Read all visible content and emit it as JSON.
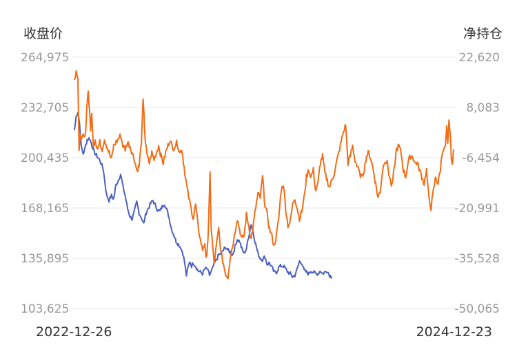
{
  "chart_data": {
    "type": "line",
    "left_axis_title": "收盘价",
    "right_axis_title": "净持仓",
    "x_start_label": "2022-12-26",
    "x_end_label": "2024-12-23",
    "x_range": [
      "2022-12-26",
      "2024-12-23"
    ],
    "left_axis": {
      "ticks": [
        "264,975",
        "232,705",
        "200,435",
        "168,165",
        "135,895",
        "103,625"
      ],
      "ylim": [
        103625,
        264975
      ]
    },
    "right_axis": {
      "ticks": [
        "22,620",
        "8,083",
        "-6,454",
        "-20,991",
        "-35,528",
        "-50,065"
      ],
      "ylim": [
        -50065,
        22620
      ]
    },
    "grid": true,
    "colors": {
      "close": "#4a5fc1",
      "net": "#f46b13",
      "grid": "#e8e8e8",
      "tick": "#999999",
      "title": "#333333"
    },
    "series": [
      {
        "axis": "left",
        "color": "#4a5fc1",
        "anchors": [
          [
            0,
            218000
          ],
          [
            3,
            227000
          ],
          [
            6,
            230000
          ],
          [
            9,
            222000
          ],
          [
            12,
            207000
          ],
          [
            15,
            203000
          ],
          [
            18,
            206000
          ],
          [
            22,
            212000
          ],
          [
            26,
            213000
          ],
          [
            30,
            209000
          ],
          [
            34,
            204000
          ],
          [
            38,
            202000
          ],
          [
            42,
            200000
          ],
          [
            46,
            197000
          ],
          [
            50,
            193000
          ],
          [
            53,
            184000
          ],
          [
            56,
            176000
          ],
          [
            60,
            173000
          ],
          [
            64,
            176000
          ],
          [
            68,
            174000
          ],
          [
            72,
            183000
          ],
          [
            76,
            186000
          ],
          [
            80,
            190000
          ],
          [
            84,
            182000
          ],
          [
            88,
            176000
          ],
          [
            92,
            168000
          ],
          [
            96,
            163000
          ],
          [
            100,
            161000
          ],
          [
            104,
            166000
          ],
          [
            108,
            172000
          ],
          [
            112,
            165000
          ],
          [
            116,
            162000
          ],
          [
            120,
            158000
          ],
          [
            124,
            165000
          ],
          [
            128,
            168000
          ],
          [
            132,
            171000
          ],
          [
            136,
            173000
          ],
          [
            140,
            170000
          ],
          [
            144,
            167000
          ],
          [
            148,
            166000
          ],
          [
            152,
            169000
          ],
          [
            156,
            171000
          ],
          [
            160,
            167000
          ],
          [
            164,
            162000
          ],
          [
            168,
            155000
          ],
          [
            172,
            151000
          ],
          [
            176,
            147000
          ],
          [
            180,
            145000
          ],
          [
            184,
            143000
          ],
          [
            188,
            139000
          ],
          [
            191,
            133000
          ],
          [
            194,
            125000
          ],
          [
            197,
            130000
          ],
          [
            200,
            134000
          ],
          [
            203,
            131000
          ],
          [
            206,
            133000
          ],
          [
            210,
            131000
          ],
          [
            214,
            128000
          ],
          [
            218,
            127000
          ],
          [
            222,
            126000
          ],
          [
            226,
            129000
          ],
          [
            230,
            129000
          ],
          [
            234,
            125000
          ],
          [
            238,
            128000
          ],
          [
            242,
            132000
          ],
          [
            246,
            135000
          ],
          [
            250,
            138000
          ],
          [
            254,
            139000
          ],
          [
            258,
            141000
          ],
          [
            262,
            143000
          ],
          [
            266,
            141000
          ],
          [
            270,
            140000
          ],
          [
            274,
            138000
          ],
          [
            278,
            143000
          ],
          [
            282,
            148000
          ],
          [
            286,
            147000
          ],
          [
            290,
            142000
          ],
          [
            294,
            139000
          ],
          [
            298,
            142000
          ],
          [
            302,
            150000
          ],
          [
            306,
            158000
          ],
          [
            310,
            152000
          ],
          [
            314,
            145000
          ],
          [
            318,
            139000
          ],
          [
            322,
            136000
          ],
          [
            326,
            135000
          ],
          [
            330,
            137000
          ],
          [
            334,
            132000
          ],
          [
            338,
            133000
          ],
          [
            342,
            130000
          ],
          [
            346,
            127000
          ],
          [
            350,
            127000
          ],
          [
            354,
            130000
          ],
          [
            358,
            131000
          ],
          [
            362,
            131000
          ],
          [
            366,
            129000
          ],
          [
            370,
            127000
          ],
          [
            374,
            126000
          ],
          [
            378,
            124000
          ],
          [
            382,
            125000
          ],
          [
            386,
            129000
          ],
          [
            390,
            134000
          ],
          [
            394,
            133000
          ],
          [
            398,
            128000
          ],
          [
            402,
            127000
          ],
          [
            406,
            126000
          ],
          [
            410,
            128000
          ],
          [
            414,
            127000
          ],
          [
            418,
            126000
          ],
          [
            422,
            126000
          ],
          [
            426,
            128000
          ],
          [
            430,
            126000
          ],
          [
            434,
            127000
          ],
          [
            438,
            128000
          ],
          [
            442,
            125000
          ],
          [
            446,
            124000
          ]
        ]
      },
      {
        "axis": "right",
        "color": "#f46b13",
        "anchors": [
          [
            0,
            16000
          ],
          [
            3,
            19000
          ],
          [
            6,
            16000
          ],
          [
            8,
            -5000
          ],
          [
            10,
            1000
          ],
          [
            12,
            -2000
          ],
          [
            15,
            0
          ],
          [
            18,
            -1000
          ],
          [
            20,
            3000
          ],
          [
            22,
            10000
          ],
          [
            24,
            13000
          ],
          [
            26,
            7000
          ],
          [
            28,
            2000
          ],
          [
            30,
            6000
          ],
          [
            33,
            -3000
          ],
          [
            36,
            -1000
          ],
          [
            40,
            -4000
          ],
          [
            44,
            -2000
          ],
          [
            48,
            -4000
          ],
          [
            52,
            -1000
          ],
          [
            56,
            -3000
          ],
          [
            60,
            -5000
          ],
          [
            64,
            -7000
          ],
          [
            68,
            -3000
          ],
          [
            72,
            -2000
          ],
          [
            76,
            -1000
          ],
          [
            80,
            0
          ],
          [
            84,
            -3000
          ],
          [
            88,
            -4000
          ],
          [
            92,
            -2000
          ],
          [
            96,
            -3000
          ],
          [
            100,
            -5000
          ],
          [
            104,
            -7000
          ],
          [
            108,
            -10000
          ],
          [
            112,
            -9000
          ],
          [
            116,
            -2000
          ],
          [
            119,
            10000
          ],
          [
            121,
            4000
          ],
          [
            123,
            -2000
          ],
          [
            126,
            -6000
          ],
          [
            130,
            -8000
          ],
          [
            134,
            -5000
          ],
          [
            138,
            -7000
          ],
          [
            142,
            -5000
          ],
          [
            146,
            -3000
          ],
          [
            150,
            -6000
          ],
          [
            154,
            -8000
          ],
          [
            158,
            -5000
          ],
          [
            162,
            -3000
          ],
          [
            166,
            -1000
          ],
          [
            170,
            -4000
          ],
          [
            174,
            -3000
          ],
          [
            178,
            -2000
          ],
          [
            182,
            -5000
          ],
          [
            186,
            -4000
          ],
          [
            190,
            -9000
          ],
          [
            194,
            -14000
          ],
          [
            198,
            -18000
          ],
          [
            202,
            -21000
          ],
          [
            206,
            -24000
          ],
          [
            210,
            -20000
          ],
          [
            214,
            -26000
          ],
          [
            218,
            -30000
          ],
          [
            222,
            -33000
          ],
          [
            226,
            -31000
          ],
          [
            228,
            -36000
          ],
          [
            230,
            -33000
          ],
          [
            232,
            -28000
          ],
          [
            235,
            -11000
          ],
          [
            237,
            -27000
          ],
          [
            239,
            -31000
          ],
          [
            242,
            -37000
          ],
          [
            246,
            -32000
          ],
          [
            250,
            -27000
          ],
          [
            254,
            -34000
          ],
          [
            258,
            -37000
          ],
          [
            262,
            -40000
          ],
          [
            266,
            -41000
          ],
          [
            270,
            -35000
          ],
          [
            274,
            -32000
          ],
          [
            278,
            -28000
          ],
          [
            282,
            -24000
          ],
          [
            286,
            -27000
          ],
          [
            290,
            -30000
          ],
          [
            294,
            -29000
          ],
          [
            298,
            -23000
          ],
          [
            302,
            -26000
          ],
          [
            306,
            -30000
          ],
          [
            310,
            -26000
          ],
          [
            314,
            -21000
          ],
          [
            318,
            -17000
          ],
          [
            322,
            -18000
          ],
          [
            326,
            -12000
          ],
          [
            330,
            -20000
          ],
          [
            334,
            -23000
          ],
          [
            338,
            -27000
          ],
          [
            342,
            -29000
          ],
          [
            346,
            -32000
          ],
          [
            350,
            -29000
          ],
          [
            354,
            -24000
          ],
          [
            358,
            -16000
          ],
          [
            362,
            -14000
          ],
          [
            366,
            -21000
          ],
          [
            370,
            -26000
          ],
          [
            374,
            -25000
          ],
          [
            378,
            -20000
          ],
          [
            382,
            -18000
          ],
          [
            386,
            -21000
          ],
          [
            390,
            -24000
          ],
          [
            394,
            -22000
          ],
          [
            398,
            -18000
          ],
          [
            402,
            -12000
          ],
          [
            406,
            -10000
          ],
          [
            410,
            -12000
          ],
          [
            414,
            -10000
          ],
          [
            418,
            -16000
          ],
          [
            422,
            -14000
          ],
          [
            426,
            -8000
          ],
          [
            430,
            -6000
          ],
          [
            434,
            -11000
          ],
          [
            438,
            -13000
          ],
          [
            442,
            -15000
          ],
          [
            446,
            -13000
          ],
          [
            450,
            -11000
          ],
          [
            454,
            -8000
          ],
          [
            458,
            -5000
          ],
          [
            462,
            -2000
          ],
          [
            466,
            1000
          ],
          [
            470,
            3000
          ],
          [
            474,
            -8000
          ],
          [
            478,
            -6000
          ],
          [
            482,
            -3000
          ],
          [
            486,
            -7000
          ],
          [
            490,
            -9000
          ],
          [
            494,
            -11000
          ],
          [
            498,
            -12000
          ],
          [
            502,
            -10000
          ],
          [
            506,
            -6000
          ],
          [
            510,
            -5000
          ],
          [
            514,
            -7000
          ],
          [
            518,
            -10000
          ],
          [
            522,
            -14000
          ],
          [
            526,
            -18000
          ],
          [
            530,
            -16000
          ],
          [
            534,
            -10000
          ],
          [
            538,
            -7000
          ],
          [
            542,
            -8000
          ],
          [
            546,
            -12000
          ],
          [
            550,
            -15000
          ],
          [
            554,
            -10000
          ],
          [
            558,
            -4000
          ],
          [
            562,
            -3000
          ],
          [
            566,
            -5000
          ],
          [
            570,
            -10000
          ],
          [
            574,
            -12000
          ],
          [
            578,
            -8000
          ],
          [
            582,
            -6000
          ],
          [
            586,
            -6000
          ],
          [
            590,
            -8000
          ],
          [
            594,
            -8000
          ],
          [
            598,
            -10000
          ],
          [
            602,
            -12000
          ],
          [
            606,
            -14000
          ],
          [
            610,
            -10000
          ],
          [
            614,
            -18000
          ],
          [
            618,
            -21000
          ],
          [
            622,
            -16000
          ],
          [
            626,
            -12000
          ],
          [
            630,
            -14000
          ],
          [
            634,
            -10000
          ],
          [
            638,
            -4000
          ],
          [
            641,
            -4000
          ],
          [
            643,
            -3000
          ],
          [
            645,
            2000
          ],
          [
            647,
            -3000
          ],
          [
            649,
            4000
          ],
          [
            651,
            1000
          ],
          [
            653,
            -6000
          ],
          [
            655,
            -9000
          ],
          [
            657,
            -4000
          ]
        ]
      }
    ]
  }
}
